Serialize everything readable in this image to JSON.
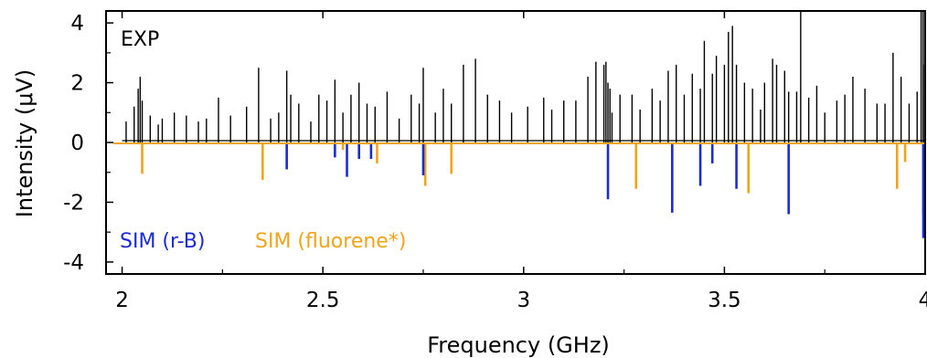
{
  "chart_data": {
    "type": "line",
    "xlabel": "Frequency (GHz)",
    "ylabel": "Intensity (μV)",
    "xlim": [
      1.96,
      4.0
    ],
    "ylim": [
      -4.4,
      4.4
    ],
    "x_ticks": [
      2,
      2.5,
      3,
      3.5,
      4
    ],
    "x_tick_labels": [
      "2",
      "2.5",
      "3",
      "3.5",
      "4"
    ],
    "y_ticks": [
      4,
      2,
      0,
      -2,
      -4
    ],
    "y_tick_labels": [
      "4",
      "2",
      "0",
      "-2",
      "-4"
    ],
    "grid": false,
    "annotations": {
      "exp": "EXP",
      "sim_rb": "SIM (r-B)",
      "sim_fluorene": "SIM (fluorene*)"
    },
    "colors": {
      "exp": "#000000",
      "sim_rb": "#1a2bd6",
      "sim_fluorene": "#f0a418"
    },
    "series": [
      {
        "name": "EXP",
        "type": "stick",
        "x": [
          2.01,
          2.03,
          2.04,
          2.045,
          2.05,
          2.07,
          2.09,
          2.1,
          2.13,
          2.16,
          2.19,
          2.21,
          2.24,
          2.27,
          2.31,
          2.34,
          2.37,
          2.39,
          2.41,
          2.42,
          2.44,
          2.47,
          2.49,
          2.51,
          2.53,
          2.55,
          2.57,
          2.59,
          2.61,
          2.63,
          2.66,
          2.69,
          2.72,
          2.74,
          2.75,
          2.78,
          2.8,
          2.82,
          2.85,
          2.88,
          2.91,
          2.94,
          2.97,
          3.01,
          3.05,
          3.07,
          3.1,
          3.13,
          3.16,
          3.18,
          3.2,
          3.205,
          3.21,
          3.215,
          3.22,
          3.24,
          3.27,
          3.29,
          3.32,
          3.34,
          3.36,
          3.38,
          3.4,
          3.42,
          3.44,
          3.45,
          3.47,
          3.48,
          3.5,
          3.51,
          3.52,
          3.53,
          3.55,
          3.57,
          3.59,
          3.6,
          3.62,
          3.63,
          3.65,
          3.66,
          3.68,
          3.69,
          3.71,
          3.73,
          3.75,
          3.78,
          3.8,
          3.82,
          3.85,
          3.88,
          3.9,
          3.92,
          3.94,
          3.96,
          3.98,
          3.99,
          3.995,
          4.0
        ],
        "values": [
          0.7,
          1.2,
          1.8,
          2.2,
          1.4,
          0.9,
          0.6,
          0.8,
          1.0,
          0.9,
          0.7,
          0.8,
          1.5,
          0.9,
          1.2,
          2.5,
          0.8,
          1.0,
          2.4,
          1.6,
          1.3,
          0.7,
          1.6,
          1.4,
          2.1,
          1.0,
          1.6,
          2.0,
          1.3,
          1.2,
          1.7,
          0.8,
          1.6,
          1.3,
          2.5,
          1.0,
          1.8,
          1.3,
          2.6,
          2.8,
          1.6,
          1.4,
          1.0,
          1.2,
          1.5,
          1.1,
          1.4,
          1.4,
          2.2,
          2.7,
          2.6,
          2.7,
          2.0,
          1.8,
          1.0,
          1.6,
          1.6,
          1.1,
          1.8,
          1.4,
          2.4,
          2.6,
          1.6,
          2.3,
          1.8,
          3.4,
          2.3,
          2.9,
          2.6,
          3.7,
          3.9,
          2.6,
          2.0,
          1.8,
          1.1,
          2.0,
          2.8,
          2.6,
          2.4,
          1.7,
          1.7,
          4.4,
          1.5,
          1.9,
          1.0,
          1.4,
          1.6,
          2.2,
          1.8,
          1.3,
          1.3,
          3.0,
          2.2,
          1.3,
          1.7,
          4.4,
          4.4,
          2.6
        ]
      },
      {
        "name": "SIM (r-B)",
        "type": "stick",
        "x": [
          2.41,
          2.53,
          2.56,
          2.59,
          2.62,
          2.75,
          3.21,
          3.37,
          3.44,
          3.47,
          3.53,
          3.66,
          4.0
        ],
        "values": [
          -0.9,
          -0.5,
          -1.15,
          -0.55,
          -0.55,
          -1.1,
          -1.9,
          -2.35,
          -1.45,
          -0.7,
          -1.55,
          -2.4,
          -3.2
        ]
      },
      {
        "name": "SIM (fluorene*)",
        "type": "stick",
        "x": [
          2.05,
          2.35,
          2.55,
          2.635,
          2.755,
          2.82,
          3.28,
          3.56,
          3.93,
          3.95,
          3.995
        ],
        "values": [
          -1.05,
          -1.25,
          -0.25,
          -0.7,
          -1.45,
          -1.05,
          -1.55,
          -1.7,
          -1.55,
          -0.65,
          -2.35
        ]
      }
    ]
  }
}
